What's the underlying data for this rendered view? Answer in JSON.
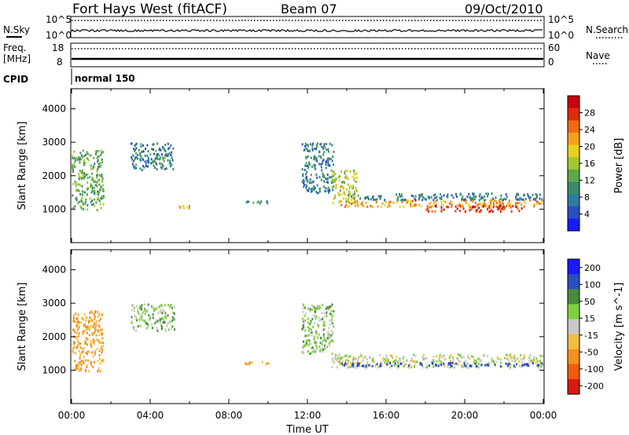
{
  "header": {
    "title": "Fort Hays West (fitACF)",
    "beam": "Beam 07",
    "date": "09/Oct/2010"
  },
  "summary": {
    "nsky_label": "N.Sky",
    "nsearch_label": "N.Search",
    "freq_label_line1": "Freq.",
    "freq_label_line2": "[MHz]",
    "nave_label": "Nave",
    "cpid_label": "CPID",
    "cpid_value": "normal 150",
    "noise_ticks_left": [
      "10^5",
      "10^0"
    ],
    "noise_ticks_right": [
      "10^5",
      "10^0"
    ],
    "freq_ticks": [
      "18",
      "8"
    ],
    "nave_ticks": [
      "60",
      "0"
    ]
  },
  "colors": {
    "power_scale": [
      "#1a1aff",
      "#2a4fc0",
      "#2e7e9e",
      "#3a8a6a",
      "#5fa84a",
      "#a0c830",
      "#e8d020",
      "#f5a020",
      "#f06a10",
      "#e02a10",
      "#c80010"
    ],
    "velocity_scale": [
      "#1a1aff",
      "#2a4fc0",
      "#4a8a3a",
      "#7fcf40",
      "#c8c8c8",
      "#f0c040",
      "#f59020",
      "#f05a10",
      "#d81a10"
    ]
  },
  "chart_data": [
    {
      "type": "heatmap",
      "name": "power",
      "ylabel": "Slant Range [km]",
      "yticks": [
        "1000",
        "2000",
        "3000",
        "4000"
      ],
      "ylim": [
        0,
        4600
      ],
      "colorbar_label": "Power [dB]",
      "colorbar_ticks": [
        "4",
        "8",
        "12",
        "16",
        "20",
        "24",
        "28"
      ],
      "colorbar_range": [
        0,
        30
      ],
      "regions": [
        {
          "t0": 0.0,
          "t1": 1.6,
          "r0": 1000,
          "r1": 2800,
          "v": 12
        },
        {
          "t0": 3.0,
          "t1": 5.2,
          "r0": 2200,
          "r1": 3000,
          "v": 8
        },
        {
          "t0": 5.3,
          "t1": 6.0,
          "r0": 1050,
          "r1": 1150,
          "v": 20
        },
        {
          "t0": 8.8,
          "t1": 10.2,
          "r0": 1200,
          "r1": 1300,
          "v": 8
        },
        {
          "t0": 11.7,
          "t1": 13.3,
          "r0": 1500,
          "r1": 3000,
          "v": 8
        },
        {
          "t0": 13.2,
          "t1": 14.5,
          "r0": 1200,
          "r1": 2200,
          "v": 16
        },
        {
          "t0": 13.6,
          "t1": 24.0,
          "r0": 1100,
          "r1": 1300,
          "v": 20
        },
        {
          "t0": 14.0,
          "t1": 24.0,
          "r0": 1300,
          "r1": 1500,
          "v": 8
        },
        {
          "t0": 18.0,
          "t1": 23.0,
          "r0": 950,
          "r1": 1150,
          "v": 26
        }
      ]
    },
    {
      "type": "heatmap",
      "name": "velocity",
      "xlabel": "Time UT",
      "ylabel": "Slant Range [km]",
      "xticks": [
        "00:00",
        "04:00",
        "08:00",
        "12:00",
        "16:00",
        "20:00",
        "00:00"
      ],
      "yticks": [
        "1000",
        "2000",
        "3000",
        "4000"
      ],
      "ylim": [
        0,
        4600
      ],
      "colorbar_label": "Velocity [m s^-1]",
      "colorbar_ticks": [
        "200",
        "100",
        "50",
        "15",
        "-15",
        "-50",
        "-100",
        "-200"
      ],
      "colorbar_range": [
        -250,
        250
      ],
      "regions": [
        {
          "t0": 0.0,
          "t1": 1.6,
          "r0": 1000,
          "r1": 2800,
          "v": -60
        },
        {
          "t0": 3.0,
          "t1": 5.2,
          "r0": 2200,
          "r1": 3000,
          "v": 30
        },
        {
          "t0": 8.8,
          "t1": 10.2,
          "r0": 1200,
          "r1": 1300,
          "v": -60
        },
        {
          "t0": 11.7,
          "t1": 13.3,
          "r0": 1500,
          "r1": 3000,
          "v": 30
        },
        {
          "t0": 13.2,
          "t1": 24.0,
          "r0": 1100,
          "r1": 1500,
          "v": 0
        },
        {
          "t0": 13.6,
          "t1": 24.0,
          "r0": 1150,
          "r1": 1250,
          "v": 150
        }
      ]
    }
  ]
}
